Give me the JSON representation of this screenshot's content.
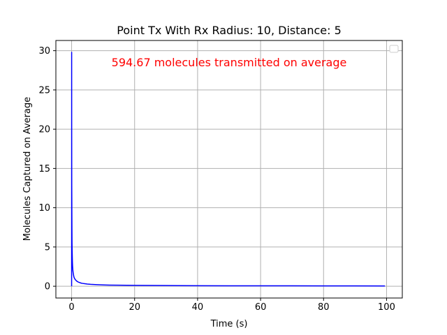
{
  "chart_data": {
    "type": "line",
    "title": "Point Tx With Rx Radius: 10, Distance: 5",
    "xlabel": "Time (s)",
    "ylabel": "Molecules Captured on Average",
    "xlim": [
      -5,
      105
    ],
    "ylim": [
      -1.5,
      31.3
    ],
    "xticks": [
      0,
      20,
      40,
      60,
      80,
      100
    ],
    "yticks": [
      0,
      5,
      10,
      15,
      20,
      25,
      30
    ],
    "xtick_labels": [
      "0",
      "20",
      "40",
      "60",
      "80",
      "100"
    ],
    "ytick_labels": [
      "0",
      "5",
      "10",
      "15",
      "20",
      "25",
      "30"
    ],
    "grid": true,
    "legend": "top-right (empty)",
    "annotation": {
      "text": "594.67 molecules transmitted on average",
      "color": "#ff0000"
    },
    "series": [
      {
        "color": "#0000ff",
        "x": [
          0,
          0.01,
          0.02,
          0.04,
          0.06,
          0.08,
          0.1,
          0.13,
          0.16,
          0.2,
          0.25,
          0.3,
          0.35,
          0.4,
          0.5,
          0.6,
          0.7,
          0.8,
          1.0,
          1.2,
          1.5,
          1.8,
          2.2,
          2.6,
          3.0,
          3.5,
          4.0,
          5.0,
          6.0,
          8.0,
          10.0,
          12.0,
          15.0,
          20.0,
          25.0,
          30.0,
          40.0,
          50.0,
          60.0,
          70.0,
          80.0,
          90.0,
          99.5
        ],
        "y": [
          0,
          29.8,
          20.5,
          13.0,
          11.2,
          9.0,
          7.3,
          5.5,
          4.6,
          3.9,
          3.1,
          2.6,
          2.3,
          2.0,
          1.7,
          1.45,
          1.25,
          1.1,
          0.95,
          0.82,
          0.7,
          0.6,
          0.52,
          0.46,
          0.4,
          0.36,
          0.33,
          0.28,
          0.24,
          0.2,
          0.17,
          0.15,
          0.13,
          0.11,
          0.1,
          0.09,
          0.07,
          0.06,
          0.05,
          0.05,
          0.04,
          0.04,
          0.03
        ]
      }
    ]
  }
}
